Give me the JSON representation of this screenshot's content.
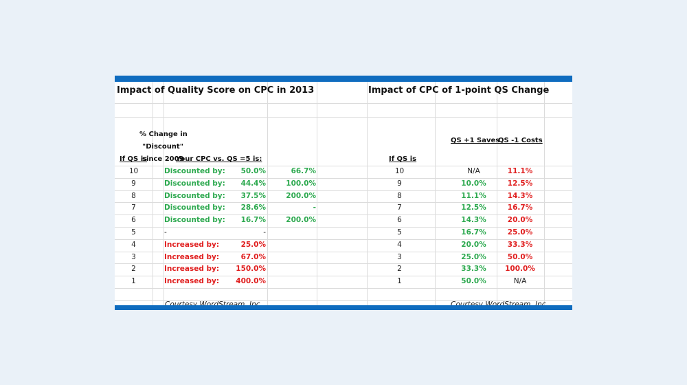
{
  "left_table": {
    "title": "Impact of Quality Score on CPC in 2013",
    "col_qs": "If QS is",
    "col_cpc": "Your CPC vs. QS =5 is:",
    "col_change": [
      "% Change in",
      "\"Discount\"",
      "since 2009"
    ],
    "rows": [
      {
        "qs": "10",
        "label": "Discounted by:",
        "value": "50.0%",
        "change": "66.7%",
        "tone": "green"
      },
      {
        "qs": "9",
        "label": "Discounted by:",
        "value": "44.4%",
        "change": "100.0%",
        "tone": "green"
      },
      {
        "qs": "8",
        "label": "Discounted by:",
        "value": "37.5%",
        "change": "200.0%",
        "tone": "green"
      },
      {
        "qs": "7",
        "label": "Discounted by:",
        "value": "28.6%",
        "change": "-",
        "tone": "green"
      },
      {
        "qs": "6",
        "label": "Discounted by:",
        "value": "16.7%",
        "change": "200.0%",
        "tone": "green"
      },
      {
        "qs": "5",
        "label": "-",
        "value": "-",
        "change": "",
        "tone": "dark"
      },
      {
        "qs": "4",
        "label": "Increased by:",
        "value": "25.0%",
        "change": "",
        "tone": "red"
      },
      {
        "qs": "3",
        "label": "Increased by:",
        "value": "67.0%",
        "change": "",
        "tone": "red"
      },
      {
        "qs": "2",
        "label": "Increased by:",
        "value": "150.0%",
        "change": "",
        "tone": "red"
      },
      {
        "qs": "1",
        "label": "Increased by:",
        "value": "400.0%",
        "change": "",
        "tone": "red"
      }
    ],
    "courtesy": "Courtesy WordStream, Inc."
  },
  "right_table": {
    "title": "Impact of CPC of 1-point QS Change",
    "col_qs": "If QS is",
    "col_saves": "QS +1 Saves",
    "col_costs": "QS -1 Costs",
    "rows": [
      {
        "qs": "10",
        "saves": "N/A",
        "costs": "11.1%"
      },
      {
        "qs": "9",
        "saves": "10.0%",
        "costs": "12.5%"
      },
      {
        "qs": "8",
        "saves": "11.1%",
        "costs": "14.3%"
      },
      {
        "qs": "7",
        "saves": "12.5%",
        "costs": "16.7%"
      },
      {
        "qs": "6",
        "saves": "14.3%",
        "costs": "20.0%"
      },
      {
        "qs": "5",
        "saves": "16.7%",
        "costs": "25.0%"
      },
      {
        "qs": "4",
        "saves": "20.0%",
        "costs": "33.3%"
      },
      {
        "qs": "3",
        "saves": "25.0%",
        "costs": "50.0%"
      },
      {
        "qs": "2",
        "saves": "33.3%",
        "costs": "100.0%"
      },
      {
        "qs": "1",
        "saves": "50.0%",
        "costs": "N/A"
      }
    ],
    "courtesy": "Courtesy WordStream, Inc."
  },
  "colors": {
    "accent_bar": "#0f6cbf",
    "discount_green": "#2da94f",
    "increase_red": "#e02020",
    "page_background": "#eaf1f8"
  }
}
